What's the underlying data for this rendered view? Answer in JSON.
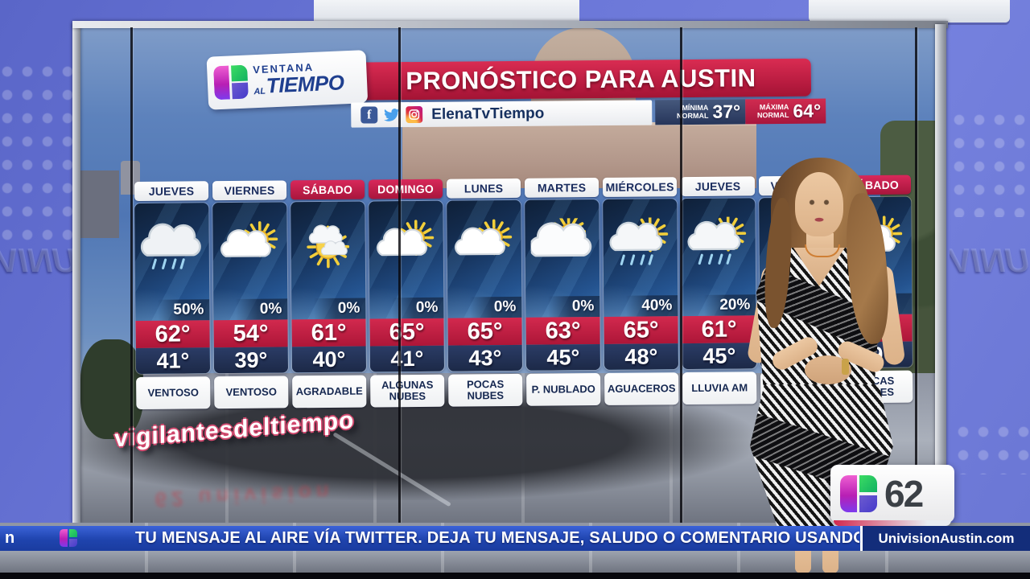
{
  "branding": {
    "show_logo": {
      "line1": "VENTANA",
      "line2_small": "AL",
      "line2_big": "TIEMPO"
    },
    "station": {
      "channel": "62"
    },
    "side_wall_text": "UNIVISION",
    "floor_text": "vigilantesdeltiempo",
    "reflection_text": "62 univision"
  },
  "header": {
    "title": "PRONÓSTICO PARA AUSTIN",
    "social": {
      "handle": "ElenaTvTiempo",
      "facebook_glyph": "f",
      "icons": [
        "facebook-icon",
        "twitter-icon",
        "instagram-icon"
      ]
    },
    "normals": {
      "min": {
        "label_line1": "MÍNIMA",
        "label_line2": "NORMAL",
        "value": "37°"
      },
      "max": {
        "label_line1": "MÁXIMA",
        "label_line2": "NORMAL",
        "value": "64°"
      }
    }
  },
  "forecast": {
    "columns": [
      {
        "day": "JUEVES",
        "weekend": false,
        "icon": "rain-cloud",
        "precip": "50%",
        "high": "62°",
        "low": "41°",
        "condition": "VENTOSO"
      },
      {
        "day": "VIERNES",
        "weekend": false,
        "icon": "cloud-sun",
        "precip": "0%",
        "high": "54°",
        "low": "39°",
        "condition": "VENTOSO"
      },
      {
        "day": "SÁBADO",
        "weekend": true,
        "icon": "sun-cloud",
        "precip": "0%",
        "high": "61°",
        "low": "40°",
        "condition": "AGRADABLE"
      },
      {
        "day": "DOMINGO",
        "weekend": true,
        "icon": "cloud-sun",
        "precip": "0%",
        "high": "65°",
        "low": "41°",
        "condition": "ALGUNAS NUBES"
      },
      {
        "day": "LUNES",
        "weekend": false,
        "icon": "cloud-sun",
        "precip": "0%",
        "high": "65°",
        "low": "43°",
        "condition": "POCAS NUBES"
      },
      {
        "day": "MARTES",
        "weekend": false,
        "icon": "cloud-sun-big",
        "precip": "0%",
        "high": "63°",
        "low": "45°",
        "condition": "P. NUBLADO"
      },
      {
        "day": "MIÉRCOLES",
        "weekend": false,
        "icon": "cloud-sun-rain",
        "precip": "40%",
        "high": "65°",
        "low": "48°",
        "condition": "AGUACEROS"
      },
      {
        "day": "JUEVES",
        "weekend": false,
        "icon": "cloud-sun-rain",
        "precip": "20%",
        "high": "61°",
        "low": "45°",
        "condition": "LLUVIA AM"
      },
      {
        "day": "VIERNES",
        "weekend": false,
        "icon": "",
        "precip": "",
        "high": "",
        "low": "",
        "condition": ""
      },
      {
        "day": "SÁBADO",
        "weekend": true,
        "icon": "cloud-sun",
        "precip": "",
        "high": "",
        "low": "49°",
        "condition": "POCAS NUBES"
      }
    ]
  },
  "ticker": {
    "overflow_fragment": "n",
    "message": "TU MENSAJE AL AIRE VÍA TWITTER. DEJA TU MENSAJE, SALUDO O COMENTARIO USANDO",
    "website": "UnivisionAustin.com"
  },
  "colors": {
    "crimson": "#c41f45",
    "navy": "#1d2c52",
    "ticker_blue": "#1f44ae",
    "wall_blue": "#6b77d8",
    "sky_blue": "#4f76b4"
  }
}
